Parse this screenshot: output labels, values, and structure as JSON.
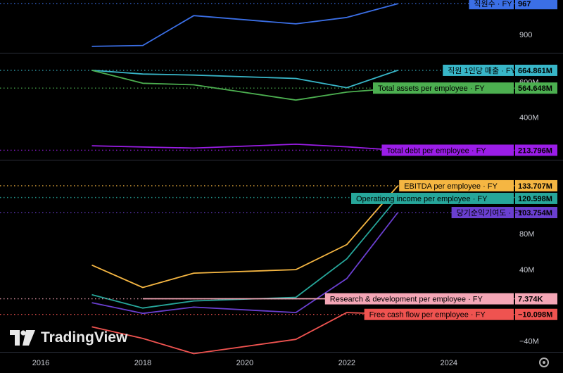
{
  "app": {
    "brand": "TradingView"
  },
  "chart_data": [
    {
      "type": "line",
      "pane": 1,
      "x": [
        2017,
        2018,
        2019,
        2021,
        2022,
        2023
      ],
      "xlim": [
        2015.2,
        2025.3
      ],
      "ylim": [
        860,
        975
      ],
      "y_ticks": [
        {
          "value": 900,
          "label": "900"
        }
      ],
      "series": [
        {
          "name": "직원수 · FY",
          "color": "#3b6fe6",
          "values": [
            874,
            876,
            941,
            923,
            937,
            967
          ],
          "last_label": "967"
        }
      ]
    },
    {
      "type": "line",
      "pane": 2,
      "x": [
        2017,
        2018,
        2019,
        2021,
        2022,
        2023
      ],
      "xlim": [
        2015.2,
        2025.3
      ],
      "ylim": [
        160,
        760
      ],
      "y_ticks": [
        {
          "value": 600,
          "label": "600M"
        },
        {
          "value": 400,
          "label": "400M"
        }
      ],
      "series": [
        {
          "name": "직원 1인당 매출 · FY",
          "color": "#38b6c8",
          "values": [
            665,
            644,
            638,
            619,
            567,
            664.861
          ],
          "last_label": "664.861M"
        },
        {
          "name": "Total assets per employee · FY",
          "color": "#4caf50",
          "values": [
            665,
            592,
            583,
            497,
            542,
            564.648
          ],
          "last_label": "564.648M"
        },
        {
          "name": "Total debt per employee · FY",
          "color": "#9b1de8",
          "values": [
            239,
            232,
            226,
            248,
            233,
            213.796
          ],
          "last_label": "213.796M"
        }
      ]
    },
    {
      "type": "line",
      "pane": 3,
      "x": [
        2017,
        2018,
        2019,
        2021,
        2022,
        2023
      ],
      "xlim": [
        2015.2,
        2025.3
      ],
      "ylim": [
        -52,
        162
      ],
      "y_ticks": [
        {
          "value": 80,
          "label": "80M"
        },
        {
          "value": 40,
          "label": "40M"
        },
        {
          "value": -40,
          "label": "−40M"
        }
      ],
      "series": [
        {
          "name": "EBITDA per employee · FY",
          "color": "#f5b642",
          "values": [
            45,
            20,
            36,
            40,
            68,
            133.707
          ],
          "last_label": "133.707M"
        },
        {
          "name": "Operationg income per employee · FY",
          "color": "#26a69a",
          "values": [
            12,
            -3,
            5,
            9,
            52,
            120.598
          ],
          "last_label": "120.598M"
        },
        {
          "name": "당기순익기여도 · FY",
          "color": "#6a3fd0",
          "values": [
            3,
            -9,
            -2,
            -8,
            30,
            103.754
          ],
          "last_label": "103.754M"
        },
        {
          "name": "Research & development  per employee · FY",
          "color": "#f4a6b6",
          "values": [
            7.374,
            7.374,
            7.374,
            7.374,
            7.374,
            7.374
          ],
          "last_label": "7.374K",
          "x_start": 2018
        },
        {
          "name": "Free cash flow per employee · FY",
          "color": "#ef5350",
          "values": [
            -24,
            -37,
            -54,
            -38,
            -8,
            -10.098
          ],
          "last_label": "−10.098M"
        }
      ]
    }
  ],
  "x_axis": {
    "ticks": [
      "2016",
      "2018",
      "2020",
      "2022",
      "2024"
    ],
    "values": [
      2016,
      2018,
      2020,
      2022,
      2024
    ]
  }
}
